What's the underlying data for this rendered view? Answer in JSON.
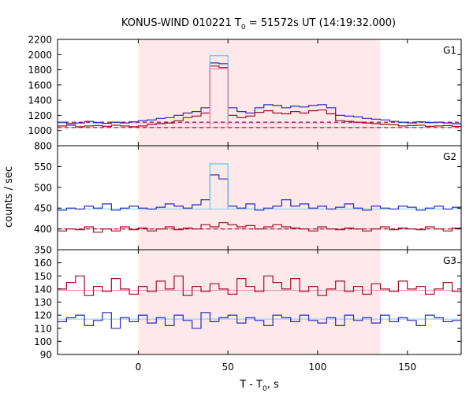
{
  "chart_data": {
    "type": "line",
    "title_main": "KONUS-WIND 010221 T",
    "title_sub": "0",
    "title_rest": " = 51572s UT (14:19:32.000)",
    "xlabel_main": "T - T",
    "xlabel_sub": "0",
    "xlabel_rest": ", s",
    "ylabel": "counts / sec",
    "xlim": [
      -45,
      180
    ],
    "x_ticks": [
      "0",
      "50",
      "100",
      "150"
    ],
    "x_tick_values": [
      0,
      50,
      100,
      150
    ],
    "highlight_interval": [
      0,
      135
    ],
    "colors": {
      "blue_hist": "#2b2bb8",
      "red_hist": "#a0102a",
      "cyan_hist": "#5ec6f0",
      "pink_hist": "#e87aa8",
      "highlight": "#fde8ea",
      "bg_line_blue": "#7ed0f0",
      "bg_line_red": "#f08ab8",
      "dashed_red": "#b01030"
    },
    "panels": [
      {
        "label": "G1",
        "ylim": [
          800,
          2200
        ],
        "y_ticks": [
          "800",
          "1000",
          "1200",
          "1400",
          "1600",
          "1800",
          "2000",
          "2200"
        ],
        "y_tick_values": [
          800,
          1000,
          1200,
          1400,
          1600,
          1800,
          2000,
          2200
        ],
        "blue_base": 1100,
        "red_base": 1040,
        "dashed_levels": [
          1110,
          1040
        ],
        "series": [
          {
            "name": "",
            "x": [
              -45,
              -40,
              -35,
              -30,
              -25,
              -20,
              -15,
              -10,
              -5,
              0,
              5,
              10,
              15,
              20,
              25,
              30,
              35,
              40,
              45,
              50,
              55,
              60,
              65,
              70,
              75,
              80,
              85,
              90,
              95,
              100,
              105,
              110,
              115,
              120,
              125,
              130,
              135,
              140,
              145,
              150,
              155,
              160,
              165,
              170,
              175
            ],
            "y": [
              1110,
              1090,
              1100,
              1120,
              1105,
              1095,
              1110,
              1100,
              1115,
              1130,
              1140,
              1160,
              1170,
              1200,
              1230,
              1250,
              1300,
              1890,
              1880,
              1300,
              1250,
              1230,
              1300,
              1340,
              1330,
              1300,
              1320,
              1310,
              1330,
              1340,
              1300,
              1200,
              1190,
              1180,
              1160,
              1150,
              1140,
              1120,
              1110,
              1100,
              1115,
              1105,
              1110,
              1100,
              1090
            ]
          },
          {
            "name": "",
            "x": [
              -45,
              -40,
              -35,
              -30,
              -25,
              -20,
              -15,
              -10,
              -5,
              0,
              5,
              10,
              15,
              20,
              25,
              30,
              35,
              40,
              45,
              50,
              55,
              60,
              65,
              70,
              75,
              80,
              85,
              90,
              95,
              100,
              105,
              110,
              115,
              120,
              125,
              130,
              135,
              140,
              145,
              150,
              155,
              160,
              165,
              170,
              175
            ],
            "y": [
              1060,
              1070,
              1050,
              1060,
              1065,
              1055,
              1070,
              1060,
              1050,
              1060,
              1080,
              1090,
              1100,
              1130,
              1170,
              1190,
              1230,
              1850,
              1830,
              1200,
              1170,
              1190,
              1240,
              1260,
              1230,
              1220,
              1250,
              1230,
              1260,
              1270,
              1220,
              1130,
              1120,
              1110,
              1100,
              1090,
              1080,
              1075,
              1060,
              1065,
              1070,
              1055,
              1060,
              1065,
              1055
            ]
          }
        ]
      },
      {
        "label": "G2",
        "ylim": [
          350,
          600
        ],
        "y_ticks": [
          "350",
          "400",
          "450",
          "500",
          "550"
        ],
        "y_tick_values": [
          350,
          400,
          450,
          500,
          550
        ],
        "blue_base": 448,
        "red_base": 400,
        "dashed_levels": [
          400
        ],
        "series": [
          {
            "name": "",
            "x": [
              -45,
              -40,
              -35,
              -30,
              -25,
              -20,
              -15,
              -10,
              -5,
              0,
              5,
              10,
              15,
              20,
              25,
              30,
              35,
              40,
              45,
              50,
              55,
              60,
              65,
              70,
              75,
              80,
              85,
              90,
              95,
              100,
              105,
              110,
              115,
              120,
              125,
              130,
              135,
              140,
              145,
              150,
              155,
              160,
              165,
              170,
              175
            ],
            "y": [
              445,
              450,
              448,
              455,
              450,
              460,
              445,
              450,
              455,
              450,
              448,
              452,
              460,
              455,
              450,
              458,
              470,
              530,
              520,
              455,
              450,
              460,
              445,
              450,
              455,
              470,
              455,
              460,
              450,
              455,
              448,
              452,
              460,
              450,
              445,
              455,
              450,
              448,
              455,
              452,
              445,
              450,
              455,
              448,
              452
            ]
          },
          {
            "name": "",
            "x": [
              -45,
              -40,
              -35,
              -30,
              -25,
              -20,
              -15,
              -10,
              -5,
              0,
              5,
              10,
              15,
              20,
              25,
              30,
              35,
              40,
              45,
              50,
              55,
              60,
              65,
              70,
              75,
              80,
              85,
              90,
              95,
              100,
              105,
              110,
              115,
              120,
              125,
              130,
              135,
              140,
              145,
              150,
              155,
              160,
              165,
              170,
              175
            ],
            "y": [
              395,
              400,
              398,
              405,
              392,
              400,
              395,
              405,
              398,
              402,
              395,
              400,
              405,
              398,
              402,
              400,
              410,
              405,
              415,
              410,
              405,
              408,
              400,
              405,
              410,
              405,
              402,
              400,
              395,
              405,
              400,
              398,
              402,
              400,
              395,
              400,
              405,
              398,
              402,
              400,
              398,
              405,
              400,
              395,
              402
            ]
          }
        ]
      },
      {
        "label": "G3",
        "ylim": [
          90,
          170
        ],
        "y_ticks": [
          "90",
          "100",
          "110",
          "120",
          "130",
          "140",
          "150",
          "160"
        ],
        "y_tick_values": [
          90,
          100,
          110,
          120,
          130,
          140,
          150,
          160
        ],
        "blue_base": 117,
        "red_base": 139,
        "dashed_levels": [],
        "series": [
          {
            "name": "",
            "x": [
              -45,
              -40,
              -35,
              -30,
              -25,
              -20,
              -15,
              -10,
              -5,
              0,
              5,
              10,
              15,
              20,
              25,
              30,
              35,
              40,
              45,
              50,
              55,
              60,
              65,
              70,
              75,
              80,
              85,
              90,
              95,
              100,
              105,
              110,
              115,
              120,
              125,
              130,
              135,
              140,
              145,
              150,
              155,
              160,
              165,
              170,
              175
            ],
            "y": [
              115,
              118,
              120,
              112,
              116,
              122,
              110,
              118,
              115,
              120,
              114,
              118,
              112,
              120,
              116,
              110,
              122,
              115,
              118,
              120,
              114,
              118,
              116,
              112,
              120,
              118,
              115,
              120,
              116,
              114,
              118,
              112,
              120,
              116,
              118,
              114,
              120,
              115,
              118,
              116,
              112,
              120,
              118,
              115,
              116
            ]
          },
          {
            "name": "",
            "x": [
              -45,
              -40,
              -35,
              -30,
              -25,
              -20,
              -15,
              -10,
              -5,
              0,
              5,
              10,
              15,
              20,
              25,
              30,
              35,
              40,
              45,
              50,
              55,
              60,
              65,
              70,
              75,
              80,
              85,
              90,
              95,
              100,
              105,
              110,
              115,
              120,
              125,
              130,
              135,
              140,
              145,
              150,
              155,
              160,
              165,
              170,
              175
            ],
            "y": [
              140,
              145,
              150,
              135,
              142,
              138,
              148,
              140,
              136,
              142,
              138,
              146,
              140,
              150,
              135,
              142,
              138,
              144,
              140,
              136,
              148,
              142,
              138,
              150,
              145,
              140,
              148,
              138,
              142,
              135,
              140,
              146,
              138,
              142,
              136,
              144,
              140,
              138,
              146,
              140,
              142,
              136,
              140,
              145,
              138
            ]
          }
        ]
      }
    ]
  }
}
